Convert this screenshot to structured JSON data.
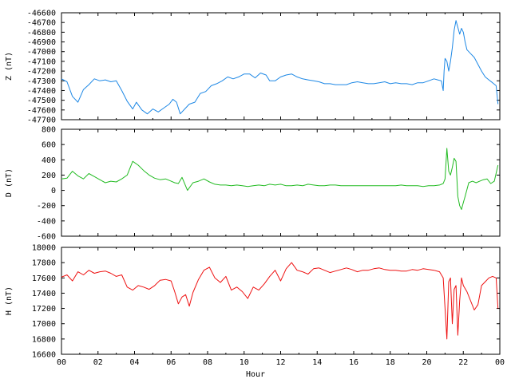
{
  "chart_data": [
    {
      "type": "line",
      "ylabel": "Z (nT)",
      "ylim": [
        -47700,
        -46600
      ],
      "yticks": [
        "-46600",
        "-46700",
        "-46800",
        "-46900",
        "-47000",
        "-47100",
        "-47200",
        "-47300",
        "-47400",
        "-47500",
        "-47600",
        "-47700"
      ],
      "series": [
        {
          "color": "#1e88e5",
          "x": [
            0,
            0.3,
            0.6,
            0.9,
            1.2,
            1.5,
            1.8,
            2.1,
            2.4,
            2.7,
            3.0,
            3.3,
            3.6,
            3.9,
            4.1,
            4.4,
            4.7,
            5.0,
            5.3,
            5.6,
            5.9,
            6.1,
            6.3,
            6.5,
            6.8,
            7.0,
            7.3,
            7.6,
            7.9,
            8.2,
            8.5,
            8.8,
            9.1,
            9.4,
            9.7,
            10.0,
            10.3,
            10.6,
            10.9,
            11.2,
            11.4,
            11.7,
            12.0,
            12.3,
            12.6,
            12.9,
            13.2,
            13.5,
            13.8,
            14.1,
            14.4,
            14.7,
            15.0,
            15.3,
            15.6,
            15.9,
            16.2,
            16.5,
            16.8,
            17.1,
            17.4,
            17.7,
            18.0,
            18.3,
            18.6,
            18.9,
            19.2,
            19.5,
            19.8,
            20.1,
            20.4,
            20.6,
            20.8,
            20.9,
            20.95,
            21.0,
            21.1,
            21.2,
            21.3,
            21.4,
            21.5,
            21.6,
            21.7,
            21.8,
            21.9,
            22.0,
            22.1,
            22.2,
            22.4,
            22.6,
            22.8,
            23.0,
            23.2,
            23.4,
            23.6,
            23.8,
            23.9
          ],
          "values": [
            -47280,
            -47310,
            -47460,
            -47520,
            -47390,
            -47340,
            -47280,
            -47300,
            -47290,
            -47310,
            -47300,
            -47400,
            -47510,
            -47590,
            -47520,
            -47600,
            -47640,
            -47590,
            -47620,
            -47580,
            -47540,
            -47490,
            -47520,
            -47640,
            -47580,
            -47540,
            -47520,
            -47430,
            -47410,
            -47350,
            -47330,
            -47300,
            -47260,
            -47280,
            -47260,
            -47230,
            -47230,
            -47270,
            -47220,
            -47240,
            -47300,
            -47300,
            -47260,
            -47240,
            -47230,
            -47260,
            -47280,
            -47290,
            -47300,
            -47310,
            -47330,
            -47330,
            -47340,
            -47340,
            -47340,
            -47320,
            -47310,
            -47320,
            -47330,
            -47330,
            -47320,
            -47310,
            -47330,
            -47320,
            -47330,
            -47330,
            -47340,
            -47320,
            -47320,
            -47300,
            -47280,
            -47290,
            -47300,
            -47400,
            -47200,
            -47070,
            -47100,
            -47200,
            -47100,
            -46960,
            -46780,
            -46680,
            -46750,
            -46820,
            -46760,
            -46800,
            -46900,
            -46980,
            -47020,
            -47060,
            -47130,
            -47200,
            -47260,
            -47290,
            -47320,
            -47350,
            -47540
          ]
        }
      ]
    },
    {
      "type": "line",
      "ylabel": "D (nT)",
      "ylim": [
        -600,
        800
      ],
      "yticks": [
        "800",
        "600",
        "400",
        "200",
        "0",
        "-200",
        "-400",
        "-600"
      ],
      "series": [
        {
          "color": "#22bb22",
          "x": [
            0,
            0.3,
            0.6,
            0.9,
            1.2,
            1.5,
            1.8,
            2.1,
            2.4,
            2.7,
            3.0,
            3.3,
            3.6,
            3.9,
            4.2,
            4.5,
            4.8,
            5.1,
            5.4,
            5.7,
            6.0,
            6.2,
            6.4,
            6.6,
            6.9,
            7.2,
            7.5,
            7.8,
            8.1,
            8.4,
            8.7,
            9.0,
            9.3,
            9.6,
            9.9,
            10.2,
            10.5,
            10.8,
            11.1,
            11.4,
            11.7,
            12.0,
            12.3,
            12.6,
            12.9,
            13.2,
            13.5,
            13.8,
            14.1,
            14.4,
            14.7,
            15.0,
            15.3,
            15.6,
            15.9,
            16.2,
            16.5,
            16.8,
            17.1,
            17.4,
            17.7,
            18.0,
            18.3,
            18.6,
            18.9,
            19.2,
            19.5,
            19.8,
            20.1,
            20.4,
            20.7,
            20.9,
            21.0,
            21.1,
            21.2,
            21.3,
            21.4,
            21.5,
            21.6,
            21.7,
            21.8,
            21.9,
            22.0,
            22.1,
            22.3,
            22.5,
            22.7,
            22.9,
            23.1,
            23.3,
            23.5,
            23.7,
            23.9
          ],
          "values": [
            150,
            160,
            250,
            190,
            150,
            220,
            180,
            140,
            100,
            120,
            110,
            150,
            200,
            380,
            330,
            260,
            200,
            160,
            140,
            150,
            120,
            100,
            90,
            170,
            0,
            100,
            120,
            150,
            110,
            80,
            70,
            70,
            60,
            70,
            60,
            50,
            60,
            70,
            60,
            80,
            70,
            80,
            60,
            60,
            70,
            60,
            80,
            70,
            60,
            60,
            70,
            70,
            60,
            60,
            60,
            60,
            60,
            60,
            60,
            60,
            60,
            60,
            60,
            70,
            60,
            60,
            60,
            50,
            60,
            60,
            70,
            90,
            150,
            550,
            250,
            200,
            300,
            420,
            380,
            -80,
            -200,
            -250,
            -160,
            -80,
            100,
            120,
            100,
            120,
            140,
            150,
            90,
            120,
            330
          ]
        }
      ]
    },
    {
      "type": "line",
      "ylabel": "H (nT)",
      "xlabel": "Hour",
      "ylim": [
        16600,
        18000
      ],
      "yticks": [
        "18000",
        "17800",
        "17600",
        "17400",
        "17200",
        "17000",
        "16800",
        "16600"
      ],
      "xticks": [
        "00",
        "02",
        "04",
        "06",
        "08",
        "10",
        "12",
        "14",
        "16",
        "18",
        "20",
        "22",
        "00"
      ],
      "series": [
        {
          "color": "#ee1111",
          "x": [
            0,
            0.3,
            0.6,
            0.9,
            1.2,
            1.5,
            1.8,
            2.1,
            2.4,
            2.7,
            3.0,
            3.3,
            3.6,
            3.9,
            4.2,
            4.5,
            4.8,
            5.1,
            5.4,
            5.7,
            6.0,
            6.2,
            6.4,
            6.6,
            6.8,
            7.0,
            7.2,
            7.5,
            7.8,
            8.1,
            8.4,
            8.7,
            9.0,
            9.3,
            9.6,
            9.9,
            10.2,
            10.5,
            10.8,
            11.1,
            11.4,
            11.7,
            12.0,
            12.3,
            12.6,
            12.9,
            13.2,
            13.5,
            13.8,
            14.1,
            14.4,
            14.7,
            15.0,
            15.3,
            15.6,
            15.9,
            16.2,
            16.5,
            16.8,
            17.1,
            17.4,
            17.7,
            18.0,
            18.3,
            18.6,
            18.9,
            19.2,
            19.5,
            19.8,
            20.1,
            20.4,
            20.7,
            20.9,
            21.0,
            21.1,
            21.2,
            21.3,
            21.4,
            21.5,
            21.6,
            21.7,
            21.8,
            21.9,
            22.0,
            22.2,
            22.4,
            22.6,
            22.8,
            23.0,
            23.2,
            23.4,
            23.6,
            23.8,
            23.9
          ],
          "values": [
            17610,
            17640,
            17560,
            17680,
            17640,
            17700,
            17660,
            17680,
            17690,
            17660,
            17620,
            17640,
            17480,
            17440,
            17500,
            17480,
            17450,
            17500,
            17570,
            17580,
            17560,
            17420,
            17260,
            17350,
            17380,
            17230,
            17410,
            17580,
            17700,
            17740,
            17600,
            17540,
            17620,
            17440,
            17480,
            17420,
            17330,
            17480,
            17440,
            17520,
            17620,
            17700,
            17560,
            17720,
            17800,
            17700,
            17680,
            17650,
            17720,
            17730,
            17700,
            17670,
            17690,
            17710,
            17730,
            17710,
            17680,
            17700,
            17700,
            17720,
            17730,
            17710,
            17700,
            17700,
            17690,
            17690,
            17710,
            17700,
            17720,
            17710,
            17700,
            17680,
            17600,
            17200,
            16800,
            17550,
            17600,
            17000,
            17450,
            17500,
            16850,
            17300,
            17600,
            17500,
            17420,
            17300,
            17180,
            17250,
            17500,
            17550,
            17600,
            17620,
            17600,
            17200
          ]
        }
      ]
    }
  ]
}
